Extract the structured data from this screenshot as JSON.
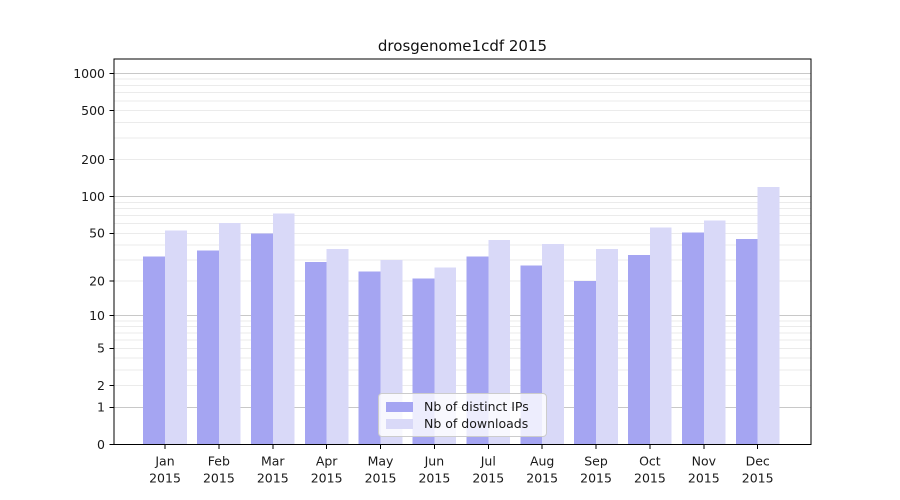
{
  "colors": {
    "background": "#ffffff",
    "axis": "#000000",
    "text": "#1a1a1a",
    "grid_major": "#c8c8c8",
    "grid_minor": "#ebebeb",
    "bar_distinct_ips": "#a5a5f2",
    "bar_downloads": "#d9d9f8",
    "legend_border": "#cccccc"
  },
  "chart_data": {
    "type": "bar",
    "title": "drosgenome1cdf 2015",
    "xlabel": "",
    "ylabel": "",
    "year_label": "2015",
    "categories": [
      "Jan",
      "Feb",
      "Mar",
      "Apr",
      "May",
      "Jun",
      "Jul",
      "Aug",
      "Sep",
      "Oct",
      "Nov",
      "Dec"
    ],
    "series": [
      {
        "name": "Nb of distinct IPs",
        "color": "#a5a5f2",
        "values": [
          32,
          36,
          50,
          29,
          24,
          21,
          32,
          27,
          20,
          33,
          51,
          45
        ]
      },
      {
        "name": "Nb of downloads",
        "color": "#d9d9f8",
        "values": [
          53,
          61,
          73,
          37,
          30,
          26,
          44,
          41,
          37,
          56,
          64,
          120
        ]
      }
    ],
    "scale": "log10(1+v)",
    "ylim": [
      0,
      1300
    ],
    "yticks": [
      0,
      1,
      2,
      5,
      10,
      20,
      50,
      100,
      200,
      500,
      1000
    ],
    "major_gridlines": [
      1,
      10,
      100,
      1000
    ],
    "minor_gridlines": [
      2,
      3,
      4,
      5,
      6,
      7,
      8,
      9,
      20,
      30,
      40,
      50,
      60,
      70,
      80,
      90,
      200,
      300,
      400,
      500,
      600,
      700,
      800,
      900
    ],
    "grid": true,
    "legend_position": "lower center"
  }
}
